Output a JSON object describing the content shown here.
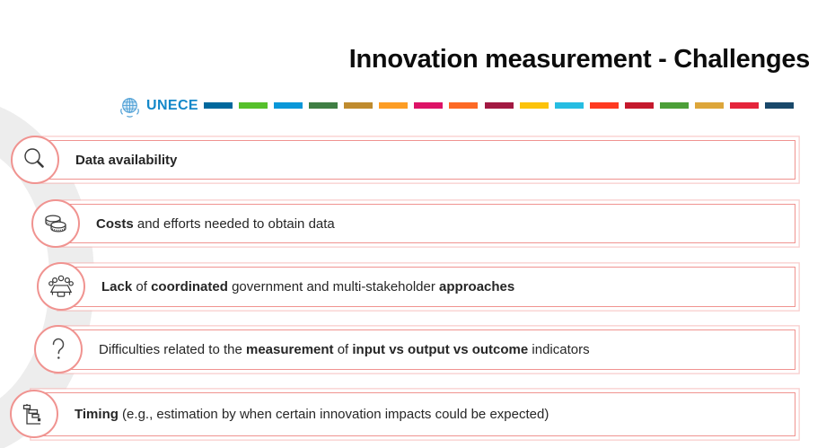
{
  "slide": {
    "title": "Innovation measurement - Challenges"
  },
  "logo": {
    "wordmark": "UNECE",
    "emblem": "un-emblem-icon",
    "wordmark_color": "#1488C9"
  },
  "sdg_strip": {
    "colors": [
      "#00689D",
      "#56C02B",
      "#0A97D9",
      "#3F7E44",
      "#BF8B2E",
      "#FD9D24",
      "#DD1367",
      "#FD6925",
      "#A21942",
      "#FCC30B",
      "#26BDE2",
      "#FF3A21",
      "#C5192D",
      "#4C9F38",
      "#DDA63A",
      "#E5243B",
      "#19486A"
    ]
  },
  "theme": {
    "box_border": "#F09390",
    "box_border_echo": "#F7C6C4",
    "icon_stroke": "#3A3A3A",
    "text_color": "#262626",
    "bg_shape": "#EDEDED"
  },
  "rows": [
    {
      "icon": "search-icon",
      "segments": [
        {
          "text": "Data availability",
          "bold": true
        }
      ]
    },
    {
      "icon": "coins-icon",
      "segments": [
        {
          "text": "Costs",
          "bold": true
        },
        {
          "text": " and efforts needed to obtain data",
          "bold": false
        }
      ]
    },
    {
      "icon": "meeting-icon",
      "segments": [
        {
          "text": "Lack",
          "bold": true
        },
        {
          "text": " of ",
          "bold": false
        },
        {
          "text": "coordinated",
          "bold": true
        },
        {
          "text": " government and multi-stakeholder ",
          "bold": false
        },
        {
          "text": "approaches",
          "bold": true
        }
      ]
    },
    {
      "icon": "question-mark-icon",
      "segments": [
        {
          "text": "Difficulties related to the ",
          "bold": false
        },
        {
          "text": "measurement",
          "bold": true
        },
        {
          "text": " of ",
          "bold": false
        },
        {
          "text": "input vs output vs outcome",
          "bold": true
        },
        {
          "text": " indicators",
          "bold": false
        }
      ]
    },
    {
      "icon": "gantt-chart-icon",
      "segments": [
        {
          "text": "Timing",
          "bold": true
        },
        {
          "text": " (e.g., estimation by when certain innovation impacts could be expected)",
          "bold": false
        }
      ]
    }
  ]
}
